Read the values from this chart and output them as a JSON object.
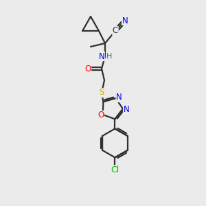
{
  "background_color": "#ebebeb",
  "atom_colors": {
    "C": "#303030",
    "N": "#0000ee",
    "O": "#ff0000",
    "S": "#ccaa00",
    "Cl": "#00bb00",
    "H": "#407070"
  },
  "figsize": [
    3.0,
    3.0
  ],
  "dpi": 100,
  "bond_lw": 1.6,
  "font_size": 8.5
}
